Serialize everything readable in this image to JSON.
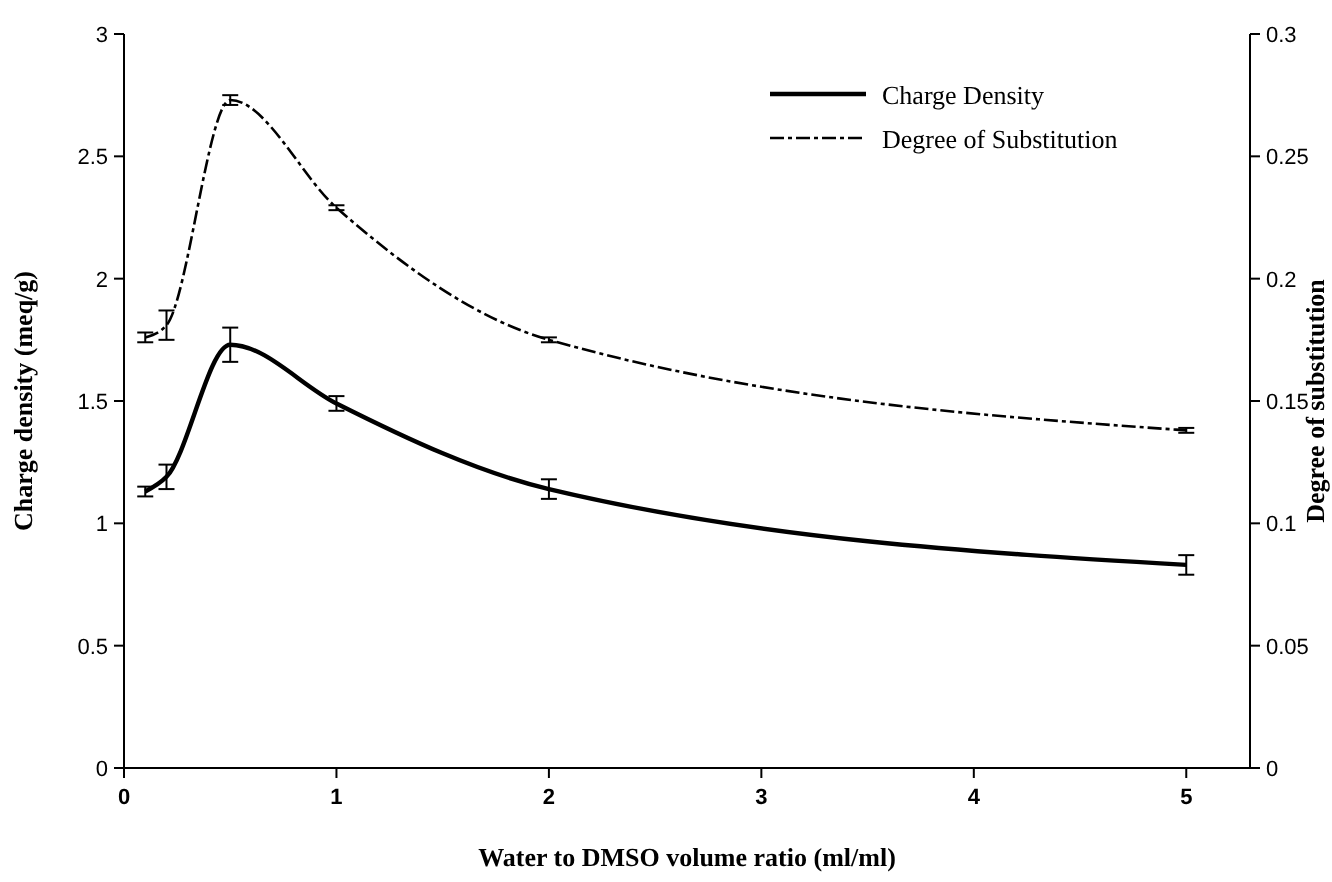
{
  "chart_data": {
    "type": "line",
    "xlabel": "Water to DMSO volume ratio (ml/ml)",
    "ylabel": "Charge density (meq/g)",
    "y2label": "Degree of substitution",
    "x": [
      0.1,
      0.2,
      0.5,
      1,
      2,
      5
    ],
    "series": [
      {
        "name": "Charge Density",
        "color": "#000000",
        "line_style": "solid",
        "values": [
          1.13,
          1.19,
          1.73,
          1.49,
          1.14,
          0.83
        ],
        "errors": [
          0.02,
          0.05,
          0.07,
          0.03,
          0.04,
          0.04
        ]
      },
      {
        "name": "Degree of Substitution",
        "color": "#000000",
        "line_style": "dashdot",
        "axis": "y2",
        "values": [
          0.176,
          0.181,
          0.273,
          0.229,
          0.175,
          0.138
        ],
        "errors": [
          0.002,
          0.006,
          0.002,
          0.001,
          0.001,
          0.001
        ]
      }
    ],
    "xlim": [
      0,
      5.3
    ],
    "xticks": [
      0,
      1,
      2,
      3,
      4,
      5
    ],
    "ylim": [
      0,
      3
    ],
    "yticks": [
      0,
      0.5,
      1,
      1.5,
      2,
      2.5,
      3
    ],
    "y2lim": [
      0,
      0.3
    ],
    "y2ticks": [
      0,
      0.05,
      0.1,
      0.15,
      0.2,
      0.25,
      0.3
    ],
    "grid": false,
    "legend": "top right",
    "marker": "none"
  }
}
